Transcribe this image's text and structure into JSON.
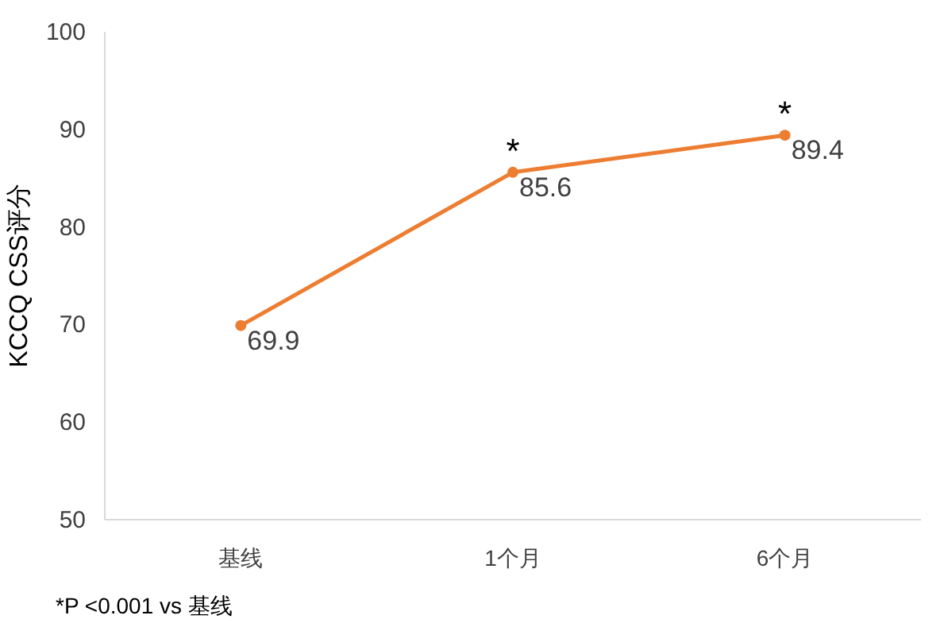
{
  "chart_data": {
    "type": "line",
    "ylabel": "KCCQ CSS评分",
    "categories": [
      "基线",
      "1个月",
      "6个月"
    ],
    "series": [
      {
        "color": "#ed7d31",
        "values": [
          69.9,
          85.6,
          89.4
        ]
      }
    ],
    "ylim": [
      50,
      100
    ],
    "yticks": [
      50,
      60,
      70,
      80,
      90,
      100
    ],
    "data_labels": true,
    "marker": "circle",
    "grid": false,
    "annotations": [
      {
        "text": "*",
        "x": "1个月",
        "y": 85.6
      },
      {
        "text": "*",
        "x": "6个月",
        "y": 89.4
      },
      "*P <0.001 vs 基线"
    ]
  }
}
